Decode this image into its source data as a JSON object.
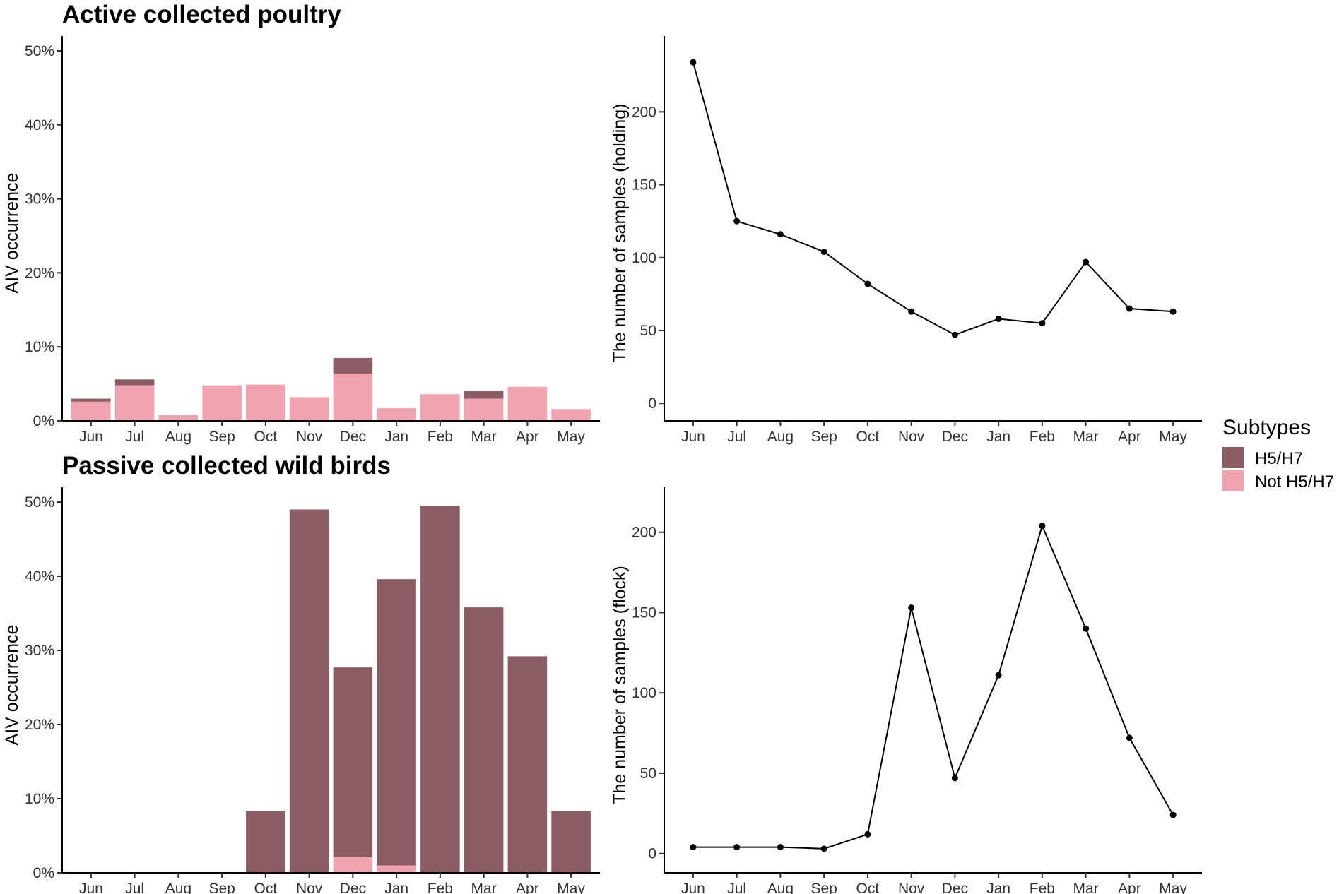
{
  "chart_data": [
    {
      "id": "p1",
      "type": "bar",
      "stacked": true,
      "title": "Active collected poultry",
      "xlabel": "",
      "ylabel": "AIV occurrence",
      "categories": [
        "Jun",
        "Jul",
        "Aug",
        "Sep",
        "Oct",
        "Nov",
        "Dec",
        "Jan",
        "Feb",
        "Mar",
        "Apr",
        "May"
      ],
      "ylim": [
        0,
        52
      ],
      "yticks": [
        0,
        10,
        20,
        30,
        40,
        50
      ],
      "ytick_labels": [
        "0%",
        "10%",
        "20%",
        "30%",
        "40%",
        "50%"
      ],
      "series": [
        {
          "name": "Not H5/H7",
          "color": "#f0a3ae",
          "values": [
            2.6,
            4.8,
            0.8,
            4.8,
            4.9,
            3.2,
            6.4,
            1.7,
            3.6,
            3.0,
            4.6,
            1.6
          ]
        },
        {
          "name": "H5/H7",
          "color": "#8b5c63",
          "values": [
            0.4,
            0.8,
            0,
            0,
            0,
            0,
            2.1,
            0,
            0,
            1.1,
            0,
            0
          ]
        }
      ]
    },
    {
      "id": "p2",
      "type": "line",
      "title": "",
      "xlabel": "",
      "ylabel": "The number of samples (holding)",
      "categories": [
        "Jun",
        "Jul",
        "Aug",
        "Sep",
        "Oct",
        "Nov",
        "Dec",
        "Jan",
        "Feb",
        "Mar",
        "Apr",
        "May"
      ],
      "ylim": [
        -12,
        252
      ],
      "yticks": [
        0,
        50,
        100,
        150,
        200
      ],
      "ytick_labels": [
        "0",
        "50",
        "100",
        "150",
        "200"
      ],
      "series": [
        {
          "name": "samples",
          "color": "#000000",
          "values": [
            234,
            125,
            116,
            104,
            82,
            63,
            47,
            58,
            55,
            97,
            65,
            63
          ]
        }
      ]
    },
    {
      "id": "p3",
      "type": "bar",
      "stacked": true,
      "title": "Passive collected wild birds",
      "xlabel": "",
      "ylabel": "AIV occurrence",
      "categories": [
        "Jun",
        "Jul",
        "Aug",
        "Sep",
        "Oct",
        "Nov",
        "Dec",
        "Jan",
        "Feb",
        "Mar",
        "Apr",
        "May"
      ],
      "ylim": [
        0,
        52
      ],
      "yticks": [
        0,
        10,
        20,
        30,
        40,
        50
      ],
      "ytick_labels": [
        "0%",
        "10%",
        "20%",
        "30%",
        "40%",
        "50%"
      ],
      "series": [
        {
          "name": "Not H5/H7",
          "color": "#f0a3ae",
          "values": [
            0,
            0,
            0,
            0,
            0,
            0,
            2.1,
            1.0,
            0,
            0,
            0,
            0
          ]
        },
        {
          "name": "H5/H7",
          "color": "#8b5c63",
          "values": [
            0,
            0,
            0,
            0,
            8.3,
            49.0,
            25.6,
            38.6,
            49.5,
            35.8,
            29.2,
            8.3
          ]
        }
      ]
    },
    {
      "id": "p4",
      "type": "line",
      "title": "",
      "xlabel": "",
      "ylabel": "The number of samples (flock)",
      "categories": [
        "Jun",
        "Jul",
        "Aug",
        "Sep",
        "Oct",
        "Nov",
        "Dec",
        "Jan",
        "Feb",
        "Mar",
        "Apr",
        "May"
      ],
      "ylim": [
        -12,
        228
      ],
      "yticks": [
        0,
        50,
        100,
        150,
        200
      ],
      "ytick_labels": [
        "0",
        "50",
        "100",
        "150",
        "200"
      ],
      "series": [
        {
          "name": "samples",
          "color": "#000000",
          "values": [
            4,
            4,
            4,
            3,
            12,
            153,
            47,
            111,
            204,
            140,
            72,
            24
          ]
        }
      ]
    }
  ],
  "legend": {
    "title": "Subtypes",
    "entries": [
      {
        "label": "H5/H7",
        "color": "#8b5c63"
      },
      {
        "label": "Not H5/H7",
        "color": "#f0a3ae"
      }
    ]
  }
}
